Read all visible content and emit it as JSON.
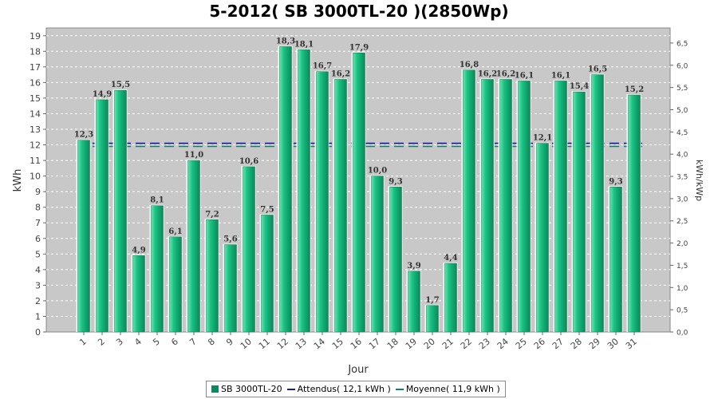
{
  "chart_data": {
    "type": "bar",
    "title": "5-2012( SB 3000TL-20 )(2850Wp)",
    "xlabel": "Jour",
    "ylabel": "kWh",
    "y2label": "kWh/kWp",
    "categories": [
      "1",
      "2",
      "3",
      "4",
      "5",
      "6",
      "7",
      "8",
      "9",
      "10",
      "11",
      "12",
      "13",
      "14",
      "15",
      "16",
      "17",
      "18",
      "19",
      "20",
      "21",
      "22",
      "23",
      "24",
      "25",
      "26",
      "27",
      "28",
      "29",
      "30",
      "31"
    ],
    "series": [
      {
        "name": "SB 3000TL-20",
        "values": [
          12.3,
          14.9,
          15.5,
          4.9,
          8.1,
          6.1,
          11.0,
          7.2,
          5.6,
          10.6,
          7.5,
          18.3,
          18.1,
          16.7,
          16.2,
          17.9,
          10.0,
          9.3,
          3.9,
          1.7,
          4.4,
          16.8,
          16.2,
          16.2,
          16.1,
          12.1,
          16.1,
          15.4,
          16.5,
          9.3,
          15.2
        ],
        "labels": [
          "12,3",
          "14,9",
          "15,5",
          "4,9",
          "8,1",
          "6,1",
          "11,0",
          "7,2",
          "5,6",
          "10,6",
          "7,5",
          "18,3",
          "18,1",
          "16,7",
          "16,2",
          "17,9",
          "10,0",
          "9,3",
          "3,9",
          "1,7",
          "4,4",
          "16,8",
          "16,2",
          "16,2",
          "16,1",
          "12,1",
          "16,1",
          "15,4",
          "16,5",
          "9,3",
          "15,2"
        ],
        "color": "#0a9a6a"
      }
    ],
    "reference_lines": [
      {
        "name": "Attendus( 12,1 kWh )",
        "value": 12.1,
        "color": "#1a1aa8"
      },
      {
        "name": "Moyenne( 11,9 kWh )",
        "value": 11.9,
        "color": "#0d7f6a"
      }
    ],
    "ylim": [
      0,
      19.5
    ],
    "yticks": [
      0,
      1,
      2,
      3,
      4,
      5,
      6,
      7,
      8,
      9,
      10,
      11,
      12,
      13,
      14,
      15,
      16,
      17,
      18,
      19
    ],
    "y2ticks": [
      "0,0",
      "0,5",
      "1,0",
      "1,5",
      "2,0",
      "2,5",
      "3,0",
      "3,5",
      "4,0",
      "4,5",
      "5,0",
      "5,5",
      "6,0",
      "6,5"
    ],
    "y2_tick_values": [
      0,
      0.5,
      1.0,
      1.5,
      2.0,
      2.5,
      3.0,
      3.5,
      4.0,
      4.5,
      5.0,
      5.5,
      6.0,
      6.5
    ],
    "y2lim": [
      0,
      6.84
    ],
    "grid": true,
    "legend_position": "bottom",
    "plot_background": "#c8c8c8"
  },
  "legend": {
    "items": [
      {
        "label": "SB 3000TL-20",
        "color": "#0a8a5e",
        "kind": "box"
      },
      {
        "label": "Attendus( 12,1 kWh )",
        "color": "#1a1aa8",
        "kind": "line"
      },
      {
        "label": "Moyenne( 11,9 kWh )",
        "color": "#0d7f6a",
        "kind": "line"
      }
    ]
  }
}
